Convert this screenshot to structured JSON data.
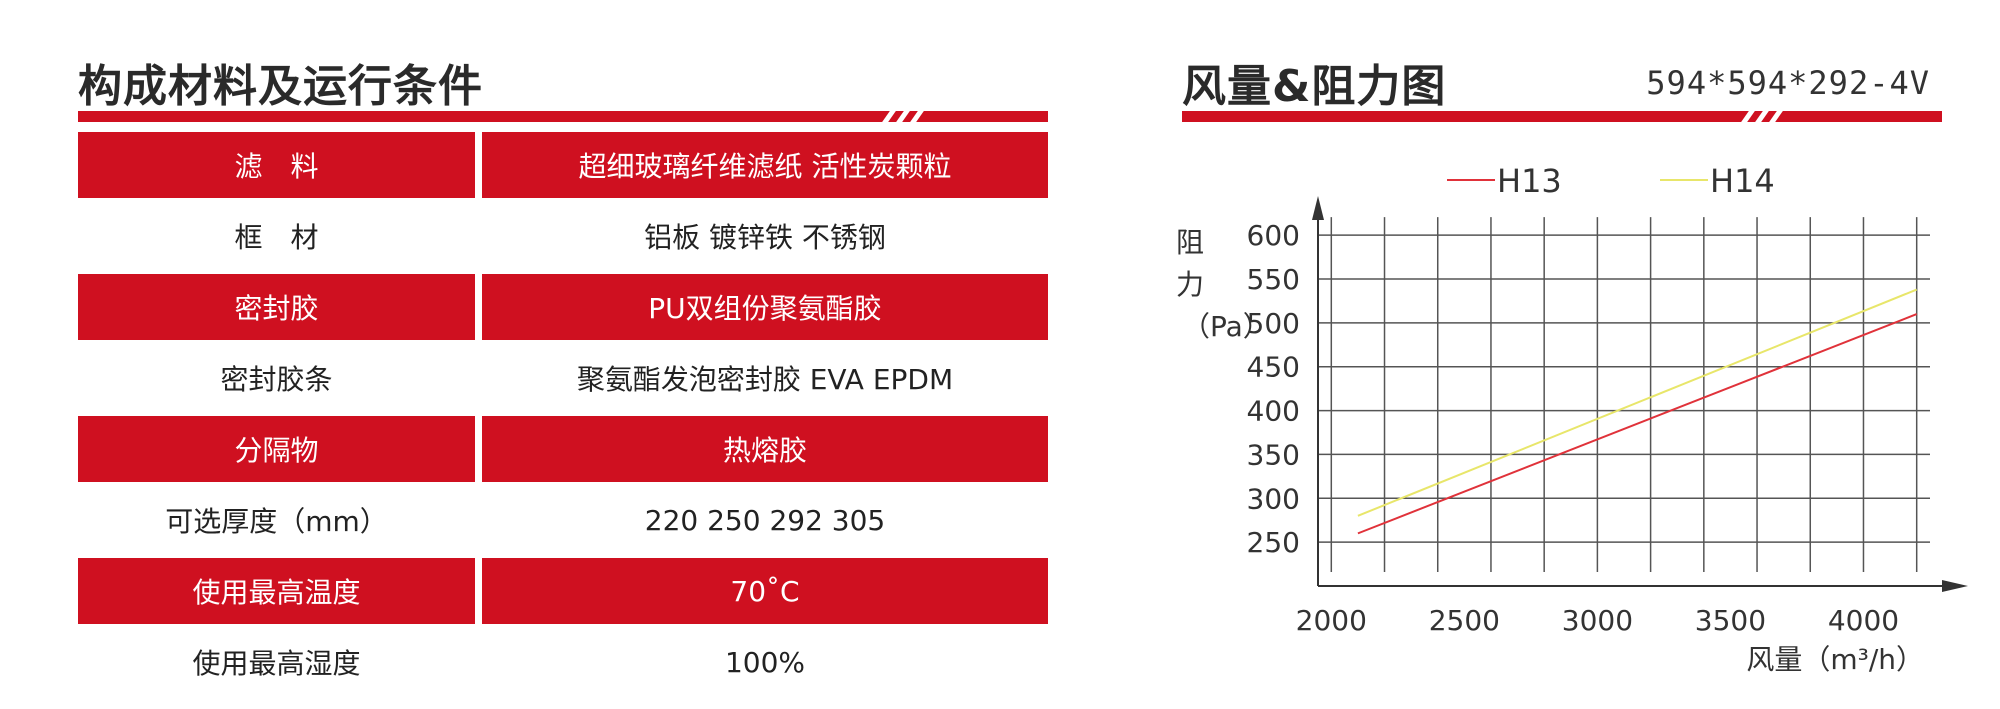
{
  "left": {
    "title": "构成材料及运行条件",
    "rows": [
      {
        "label": "滤　料",
        "value": "超细玻璃纤维滤纸 活性炭颗粒",
        "highlight": true
      },
      {
        "label": "框　材",
        "value": "铝板 镀锌铁 不锈钢",
        "highlight": false
      },
      {
        "label": "密封胶",
        "value": "PU双组份聚氨酯胶",
        "highlight": true
      },
      {
        "label": "密封胶条",
        "value": "聚氨酯发泡密封胶 EVA EPDM",
        "highlight": false
      },
      {
        "label": "分隔物",
        "value": "热熔胶",
        "highlight": true
      },
      {
        "label": "可选厚度（mm）",
        "value": "220 250 292 305",
        "highlight": false
      },
      {
        "label": "使用最高温度",
        "value": "70˚C",
        "highlight": true
      },
      {
        "label": "使用最高湿度",
        "value": "100%",
        "highlight": false
      }
    ]
  },
  "right": {
    "title": "风量&阻力图",
    "spec": "594*594*292-4V"
  },
  "colors": {
    "accent": "#cf1020",
    "h13": "#e0323a",
    "h14": "#e8e66a"
  },
  "chart_data": {
    "type": "line",
    "title": "",
    "xlabel": "风量（m³/h）",
    "ylabel_chars": [
      "阻",
      "力",
      "（Pa）"
    ],
    "xlim": [
      1950,
      4250
    ],
    "ylim": [
      200,
      615
    ],
    "xticks": [
      2000,
      2500,
      3000,
      3500,
      4000
    ],
    "yticks": [
      250,
      300,
      350,
      400,
      450,
      500,
      550,
      600
    ],
    "xgrid": [
      2000,
      2200,
      2400,
      2600,
      2800,
      3000,
      3200,
      3400,
      3600,
      3800,
      4000,
      4200
    ],
    "legend": "top",
    "grid": true,
    "series": [
      {
        "name": "H13",
        "color": "#e0323a",
        "x": [
          2100,
          4200
        ],
        "y": [
          260,
          510
        ]
      },
      {
        "name": "H14",
        "color": "#e8e66a",
        "x": [
          2100,
          4200
        ],
        "y": [
          280,
          538
        ]
      }
    ]
  }
}
